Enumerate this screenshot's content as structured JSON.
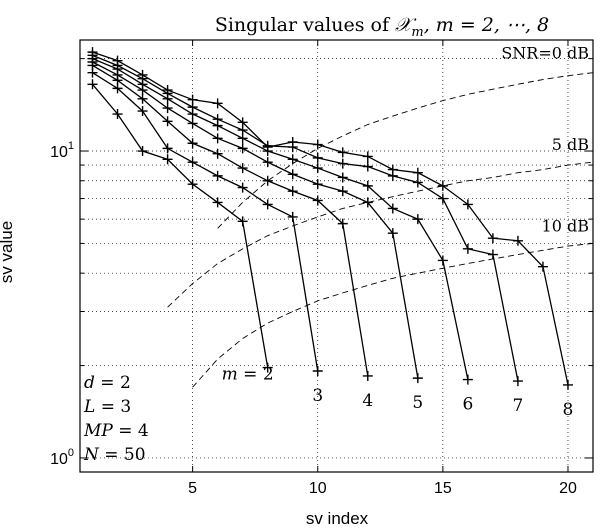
{
  "chart_data": {
    "type": "line",
    "title": "Singular values of 𝒳",
    "title_parts": {
      "prefix": "Singular values of ",
      "symbol": "𝒳",
      "subscript": "m",
      "suffix": ", m = 2, ⋯, 8"
    },
    "xlabel": "sv index",
    "ylabel": "sv value",
    "xlim": [
      0.5,
      21
    ],
    "ylim": [
      0.9,
      23
    ],
    "yscale": "log",
    "xticks": [
      "5",
      "10",
      "15",
      "20"
    ],
    "xtick_values": [
      5,
      10,
      15,
      20
    ],
    "ytick_base": "10",
    "yticks": [
      {
        "value": 1,
        "exp": "0"
      },
      {
        "value": 10,
        "exp": "1"
      }
    ],
    "grid": true,
    "series": [
      {
        "name": "m = 2",
        "label": "2",
        "x": [
          1,
          2,
          3,
          4,
          5,
          6,
          7,
          8
        ],
        "y": [
          16.5,
          13.2,
          10.0,
          9.4,
          7.8,
          6.8,
          5.9,
          1.97
        ]
      },
      {
        "name": "m = 3",
        "label": "3",
        "x": [
          1,
          2,
          3,
          4,
          5,
          6,
          7,
          8,
          9,
          10
        ],
        "y": [
          18.0,
          16.0,
          13.5,
          10.2,
          9.2,
          8.3,
          7.6,
          6.7,
          6.1,
          1.92
        ]
      },
      {
        "name": "m = 4",
        "label": "4",
        "x": [
          1,
          2,
          3,
          4,
          5,
          6,
          7,
          8,
          9,
          10,
          11,
          12
        ],
        "y": [
          19.0,
          17.0,
          14.8,
          12.5,
          10.6,
          9.8,
          8.8,
          8.0,
          7.4,
          6.9,
          5.8,
          1.85
        ]
      },
      {
        "name": "m = 5",
        "label": "5",
        "x": [
          1,
          2,
          3,
          4,
          5,
          6,
          7,
          8,
          9,
          10,
          11,
          12,
          13,
          14
        ],
        "y": [
          19.5,
          17.7,
          15.8,
          13.8,
          12.3,
          11.0,
          10.2,
          9.2,
          8.4,
          7.8,
          7.4,
          6.8,
          5.4,
          1.82
        ]
      },
      {
        "name": "m = 6",
        "label": "6",
        "x": [
          1,
          2,
          3,
          4,
          5,
          6,
          7,
          8,
          9,
          10,
          11,
          12,
          13,
          14,
          15,
          16
        ],
        "y": [
          20.0,
          18.5,
          16.5,
          14.8,
          13.2,
          12.1,
          11.0,
          10.0,
          9.4,
          8.8,
          8.2,
          7.7,
          6.5,
          6.0,
          4.4,
          1.8
        ]
      },
      {
        "name": "m = 7",
        "label": "7",
        "x": [
          1,
          2,
          3,
          4,
          5,
          6,
          7,
          8,
          9,
          10,
          11,
          12,
          13,
          14,
          15,
          16,
          17,
          18
        ],
        "y": [
          20.5,
          19.0,
          17.2,
          15.4,
          13.9,
          12.7,
          11.7,
          10.4,
          10.3,
          9.5,
          9.1,
          8.9,
          8.3,
          7.9,
          7.0,
          4.8,
          4.6,
          1.78
        ]
      },
      {
        "name": "m = 8",
        "label": "8",
        "x": [
          1,
          2,
          3,
          4,
          5,
          6,
          7,
          8,
          9,
          10,
          11,
          12,
          13,
          14,
          15,
          16,
          17,
          18,
          19,
          20
        ],
        "y": [
          21.0,
          19.7,
          17.7,
          15.8,
          14.7,
          14.3,
          12.4,
          10.3,
          10.7,
          10.5,
          9.9,
          9.6,
          8.7,
          8.5,
          7.7,
          6.7,
          5.2,
          5.1,
          4.2,
          1.73
        ]
      }
    ],
    "snr_curves": [
      {
        "label": "SNR=0 dB",
        "x": [
          6,
          7,
          8,
          9,
          10,
          11,
          12,
          13,
          14,
          15,
          16,
          17,
          18,
          19,
          20,
          21
        ],
        "y": [
          5.6,
          6.8,
          8.0,
          9.1,
          10.2,
          11.2,
          12.2,
          13.0,
          13.8,
          14.6,
          15.3,
          15.9,
          16.5,
          17.1,
          17.6,
          18.0
        ]
      },
      {
        "label": "5 dB",
        "x": [
          4,
          5,
          6,
          7,
          8,
          9,
          10,
          11,
          12,
          13,
          14,
          15,
          16,
          17,
          18,
          19,
          20,
          21
        ],
        "y": [
          3.1,
          3.7,
          4.3,
          4.8,
          5.3,
          5.7,
          6.1,
          6.5,
          6.8,
          7.1,
          7.4,
          7.7,
          8.0,
          8.2,
          8.5,
          8.7,
          9.0,
          9.2
        ]
      },
      {
        "label": "10 dB",
        "x": [
          5,
          6,
          7,
          8,
          9,
          10,
          11,
          12,
          13,
          14,
          15,
          16,
          17,
          18,
          19,
          20,
          21
        ],
        "y": [
          1.7,
          2.1,
          2.45,
          2.75,
          3.0,
          3.25,
          3.45,
          3.65,
          3.85,
          4.0,
          4.15,
          4.3,
          4.45,
          4.6,
          4.75,
          4.9,
          5.0
        ]
      }
    ],
    "annotations": {
      "m_prefix": "m = ",
      "params": [
        {
          "sym": "d",
          "val": " = 2"
        },
        {
          "sym": "L",
          "val": " = 3"
        },
        {
          "sym": "MP",
          "val": " = 4"
        },
        {
          "sym": "N",
          "val": " = 50"
        }
      ]
    }
  }
}
